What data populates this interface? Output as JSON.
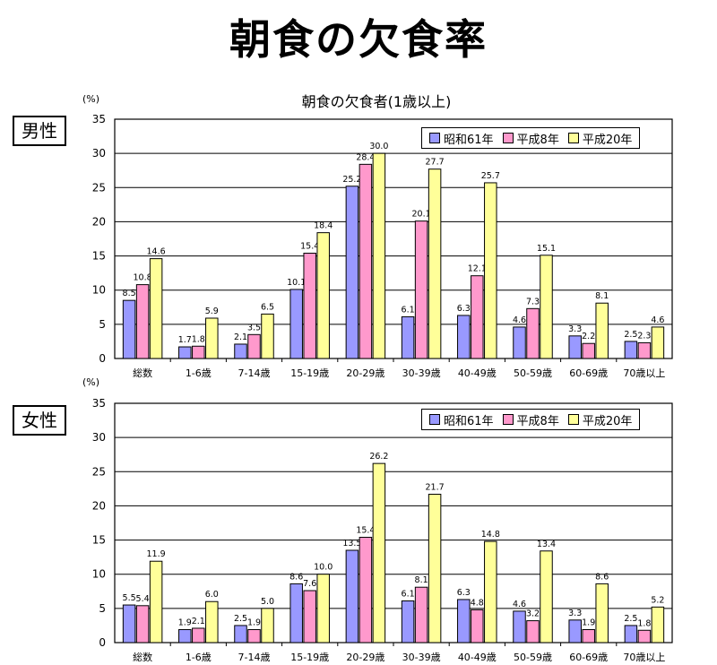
{
  "title": "朝食の欠食率",
  "subtitle": "朝食の欠食者(1歳以上)",
  "colors": {
    "s1": "#9999ff",
    "s2": "#ff99cc",
    "s3": "#ffff99"
  },
  "chart_data": [
    {
      "type": "bar",
      "panel_label": "男性",
      "unit_label": "(%)",
      "categories": [
        "総数",
        "1-6歳",
        "7-14歳",
        "15-19歳",
        "20-29歳",
        "30-39歳",
        "40-49歳",
        "50-59歳",
        "60-69歳",
        "70歳以上"
      ],
      "series": [
        {
          "name": "昭和61年",
          "values": [
            8.5,
            1.7,
            2.1,
            10.1,
            25.2,
            6.1,
            6.3,
            4.6,
            3.3,
            2.5
          ]
        },
        {
          "name": "平成8年",
          "values": [
            10.8,
            1.8,
            3.5,
            15.4,
            28.4,
            20.1,
            12.1,
            7.3,
            2.2,
            2.3
          ]
        },
        {
          "name": "平成20年",
          "values": [
            14.6,
            5.9,
            6.5,
            18.4,
            30.0,
            27.7,
            25.7,
            15.1,
            8.1,
            4.6
          ]
        }
      ],
      "ylim": [
        0,
        35
      ],
      "yticks": [
        0,
        5,
        10,
        15,
        20,
        25,
        30,
        35
      ],
      "grid": true,
      "legend": "top-right"
    },
    {
      "type": "bar",
      "panel_label": "女性",
      "unit_label": "(%)",
      "categories": [
        "総数",
        "1-6歳",
        "7-14歳",
        "15-19歳",
        "20-29歳",
        "30-39歳",
        "40-49歳",
        "50-59歳",
        "60-69歳",
        "70歳以上"
      ],
      "series": [
        {
          "name": "昭和61年",
          "values": [
            5.5,
            1.9,
            2.5,
            8.6,
            13.5,
            6.1,
            6.3,
            4.6,
            3.3,
            2.5
          ]
        },
        {
          "name": "平成8年",
          "values": [
            5.4,
            2.1,
            1.9,
            7.6,
            15.4,
            8.1,
            4.8,
            3.2,
            1.9,
            1.8
          ]
        },
        {
          "name": "平成20年",
          "values": [
            11.9,
            6.0,
            5.0,
            10.0,
            26.2,
            21.7,
            14.8,
            13.4,
            8.6,
            5.2
          ]
        }
      ],
      "ylim": [
        0,
        35
      ],
      "yticks": [
        0,
        5,
        10,
        15,
        20,
        25,
        30,
        35
      ],
      "grid": true,
      "legend": "top-right"
    }
  ]
}
